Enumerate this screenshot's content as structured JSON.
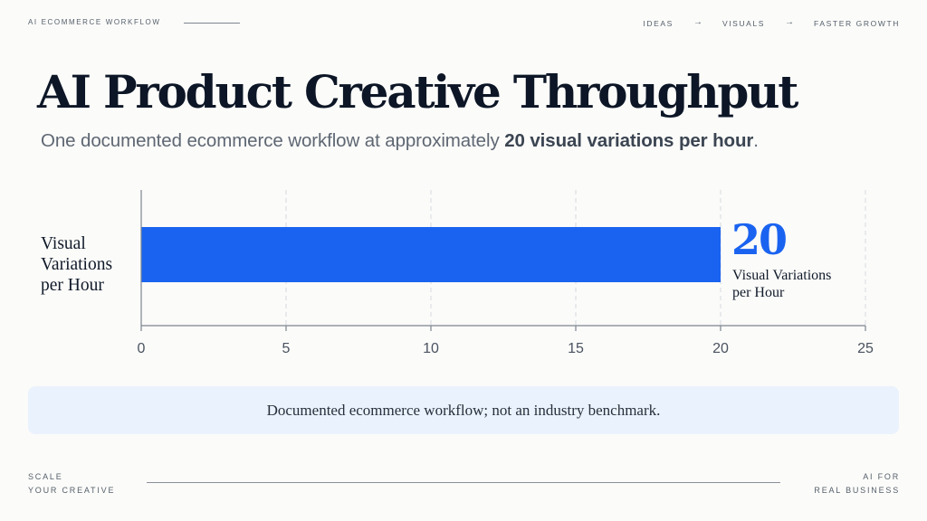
{
  "header": {
    "kicker": "AI ECOMMERCE WORKFLOW",
    "steps": [
      "IDEAS",
      "VISUALS",
      "FASTER GROWTH"
    ],
    "arrow": "→"
  },
  "title": "AI Product Creative Throughput",
  "subtitle": {
    "prefix": "One documented ecommerce workflow at approximately ",
    "emphasis": "20 visual variations per hour",
    "suffix": "."
  },
  "chart_data": {
    "type": "bar",
    "orientation": "horizontal",
    "categories": [
      "Visual Variations per Hour"
    ],
    "values": [
      20
    ],
    "xlim": [
      0,
      25
    ],
    "xticks": [
      0,
      5,
      10,
      15,
      20,
      25
    ],
    "grid": true,
    "bar_color": "#1a63f0",
    "value_label": "20",
    "value_unit": "Visual Variations per Hour",
    "ylabel_lines": [
      "Visual",
      "Variations",
      "per Hour"
    ],
    "unit_lines": [
      "Visual Variations",
      "per Hour"
    ]
  },
  "note": "Documented ecommerce workflow; not an industry benchmark.",
  "footer": {
    "left_lines": [
      "SCALE",
      "YOUR CREATIVE"
    ],
    "right_lines": [
      "AI FOR",
      "REAL BUSINESS"
    ]
  }
}
